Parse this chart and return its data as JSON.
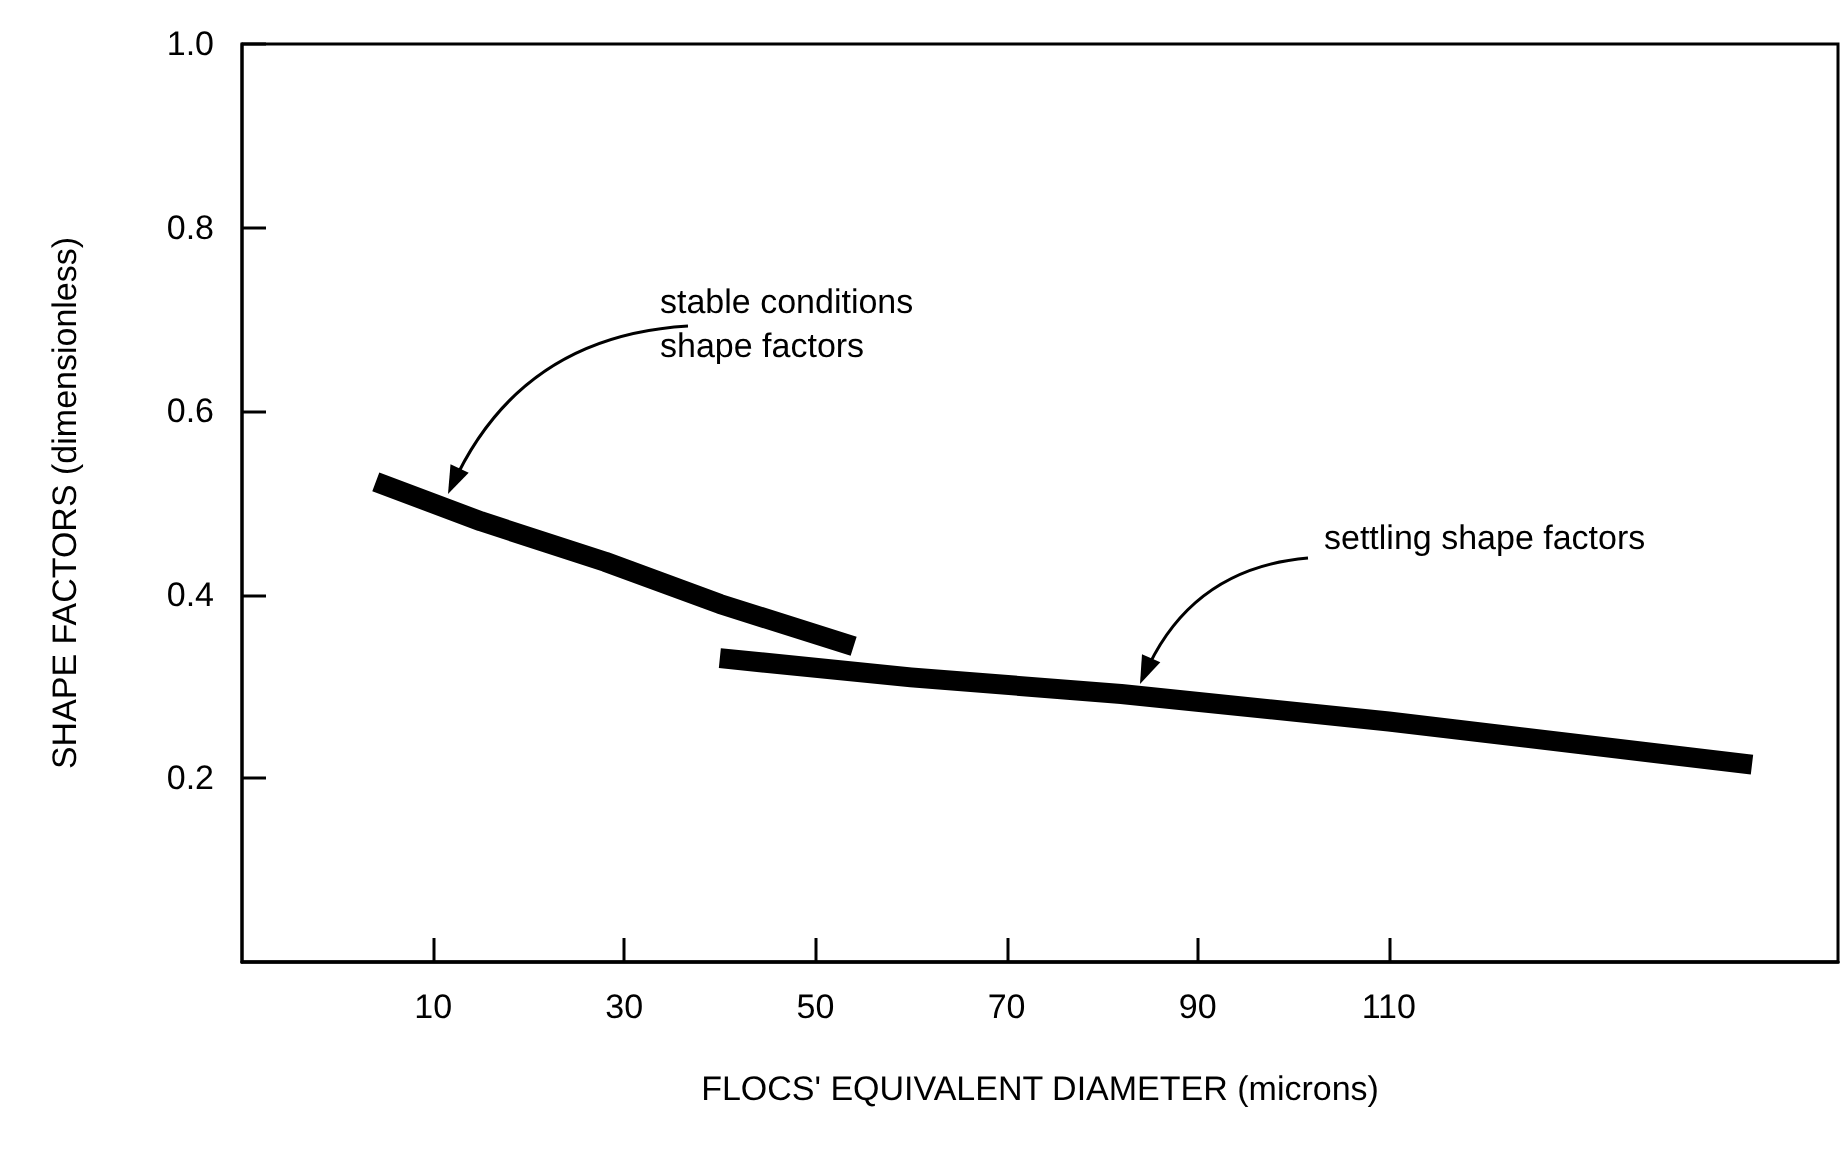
{
  "chart_data": {
    "type": "line",
    "xlabel": "FLOCS' EQUIVALENT DIAMETER (microns)",
    "ylabel": "SHAPE FACTORS (dimensionless)",
    "xlim": [
      -10,
      157
    ],
    "xticks": [
      10,
      30,
      50,
      70,
      90,
      110
    ],
    "ylim": [
      0,
      1
    ],
    "yticks": [
      0.2,
      0.4,
      0.6,
      0.8,
      {
        "value": 1,
        "label": "1.0"
      }
    ],
    "series": [
      {
        "color": "#000000",
        "x": [
          4,
          15,
          28,
          40,
          54
        ],
        "values": [
          0.523,
          0.48,
          0.436,
          0.39,
          0.344
        ]
      },
      {
        "color": "#000000",
        "x": [
          40,
          60,
          82,
          110,
          148
        ],
        "values": [
          0.331,
          0.31,
          0.292,
          0.262,
          0.215
        ]
      }
    ],
    "annotations": [
      "stable conditions\nshape factors",
      "settling shape factors"
    ],
    "marker": "none",
    "line_style": "solid",
    "grid": false
  }
}
